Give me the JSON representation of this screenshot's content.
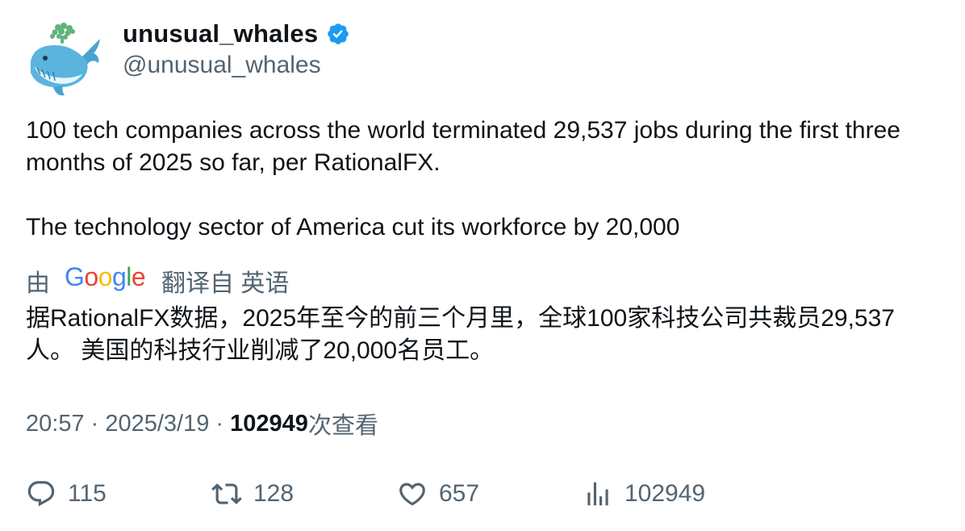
{
  "author": {
    "display_name": "unusual_whales",
    "handle": "@unusual_whales",
    "verified": true
  },
  "tweet": {
    "paragraphs": [
      "100 tech companies across the world terminated 29,537 jobs during the first three months of 2025 so far, per RationalFX.",
      "The technology sector of America cut its workforce by 20,000"
    ]
  },
  "translation": {
    "prefix": "由",
    "provider": "Google",
    "suffix": "翻译自 英语",
    "text": "据RationalFX数据，2025年至今的前三个月里，全球100家科技公司共裁员29,537人。 美国的科技行业削减了20,000名员工。"
  },
  "meta": {
    "time": "20:57",
    "separator1": " · ",
    "date": "2025/3/19",
    "separator2": " · ",
    "views": "102949",
    "views_label": "次查看"
  },
  "actions": {
    "replies": "115",
    "retweets": "128",
    "likes": "657",
    "views": "102949"
  },
  "colors": {
    "text": "#0f1419",
    "secondary": "#536471",
    "verified": "#1d9bf0"
  }
}
